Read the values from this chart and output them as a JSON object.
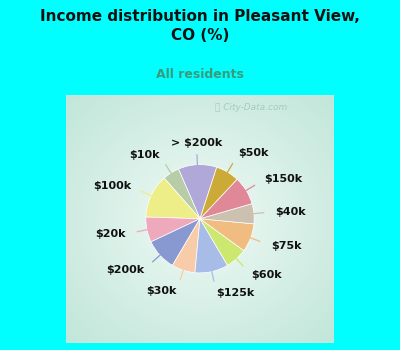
{
  "title": "Income distribution in Pleasant View,\nCO (%)",
  "subtitle": "All residents",
  "title_color": "#111111",
  "subtitle_color": "#3a9a7a",
  "background_color": "#00FFFF",
  "chart_bg_top_left": "#c8e8d8",
  "chart_bg_center": "#f0f8f4",
  "watermark": "ⓘ City-Data.com",
  "labels": [
    "> $200k",
    "$10k",
    "$100k",
    "$20k",
    "$200k",
    "$30k",
    "$125k",
    "$60k",
    "$75k",
    "$40k",
    "$150k",
    "$50k"
  ],
  "values": [
    11.5,
    5.0,
    13.0,
    7.5,
    9.5,
    7.0,
    10.0,
    6.5,
    8.5,
    6.0,
    8.5,
    7.0
  ],
  "colors": [
    "#b0a8d8",
    "#b8cca8",
    "#eeee88",
    "#eeaabc",
    "#8898d0",
    "#f8cca8",
    "#a8bce8",
    "#cce870",
    "#f0bc80",
    "#ccc0b0",
    "#e08898",
    "#ccaa38"
  ],
  "label_fontsize": 8,
  "startangle": 72
}
